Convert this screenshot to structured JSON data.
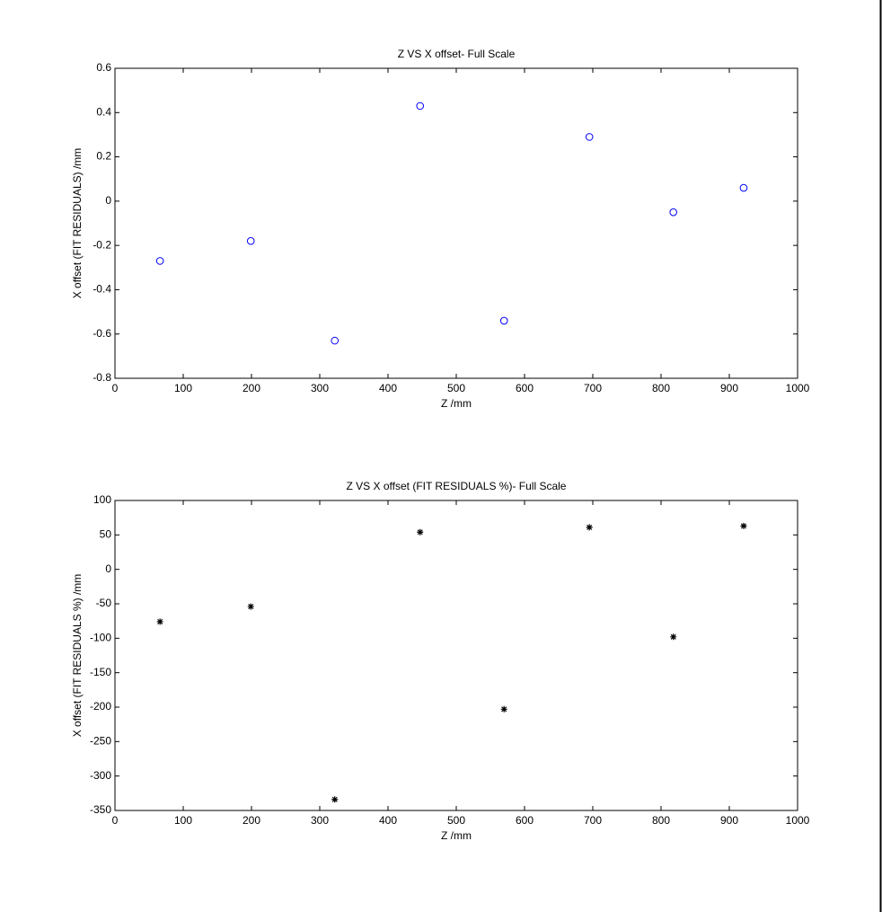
{
  "chart_data": [
    {
      "type": "scatter",
      "title": "Z VS X offset- Full Scale",
      "xlabel": "Z /mm",
      "ylabel": "X offset (FIT RESIDUALS) /mm",
      "x": [
        66,
        199,
        322,
        447,
        570,
        695,
        818,
        921
      ],
      "values": [
        -0.27,
        -0.18,
        -0.63,
        0.43,
        -0.54,
        0.29,
        -0.05,
        0.06
      ],
      "color": "#0000ff",
      "marker": "o",
      "xlim": [
        0,
        1000
      ],
      "xticks": [
        0,
        100,
        200,
        300,
        400,
        500,
        600,
        700,
        800,
        900,
        1000
      ],
      "ylim": [
        -0.8,
        0.6
      ],
      "yticks": [
        -0.8,
        -0.6,
        -0.4,
        -0.2,
        0,
        0.2,
        0.4,
        0.6
      ]
    },
    {
      "type": "scatter",
      "title": "Z VS X offset (FIT RESIDUALS %)- Full Scale",
      "xlabel": "Z /mm",
      "ylabel": "X offset (FIT RESIDUALS %) /mm",
      "x": [
        66,
        199,
        322,
        447,
        570,
        695,
        818,
        921
      ],
      "values": [
        -76,
        -54,
        -334,
        54,
        -203,
        61,
        -98,
        63
      ],
      "color": "#000000",
      "marker": "*",
      "xlim": [
        0,
        1000
      ],
      "xticks": [
        0,
        100,
        200,
        300,
        400,
        500,
        600,
        700,
        800,
        900,
        1000
      ],
      "ylim": [
        -350,
        100
      ],
      "yticks": [
        -350,
        -300,
        -250,
        -200,
        -150,
        -100,
        -50,
        0,
        50,
        100
      ]
    }
  ]
}
